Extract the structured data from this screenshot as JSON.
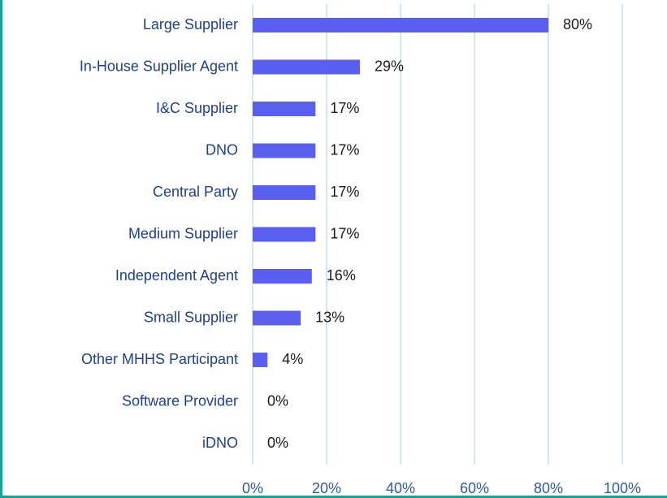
{
  "chart_data": {
    "type": "hbar",
    "categories": [
      "Large Supplier",
      "In-House Supplier Agent",
      "I&C Supplier",
      "DNO",
      "Central Party",
      "Medium Supplier",
      "Independent Agent",
      "Small Supplier",
      "Other MHHS Participant",
      "Software Provider",
      "iDNO"
    ],
    "values": [
      80,
      29,
      17,
      17,
      17,
      17,
      16,
      13,
      4,
      0,
      0
    ],
    "value_labels": [
      "80%",
      "29%",
      "17%",
      "17%",
      "17%",
      "17%",
      "16%",
      "13%",
      "4%",
      "0%",
      "0%"
    ],
    "color": "#5b5ff0",
    "xlim": [
      0,
      100
    ],
    "xticks": [
      {
        "value": 0,
        "label": "0%"
      },
      {
        "value": 20,
        "label": "20%"
      },
      {
        "value": 40,
        "label": "40%"
      },
      {
        "value": 60,
        "label": "60%"
      },
      {
        "value": 80,
        "label": "80%"
      },
      {
        "value": 100,
        "label": "100%"
      }
    ],
    "grid": true
  }
}
